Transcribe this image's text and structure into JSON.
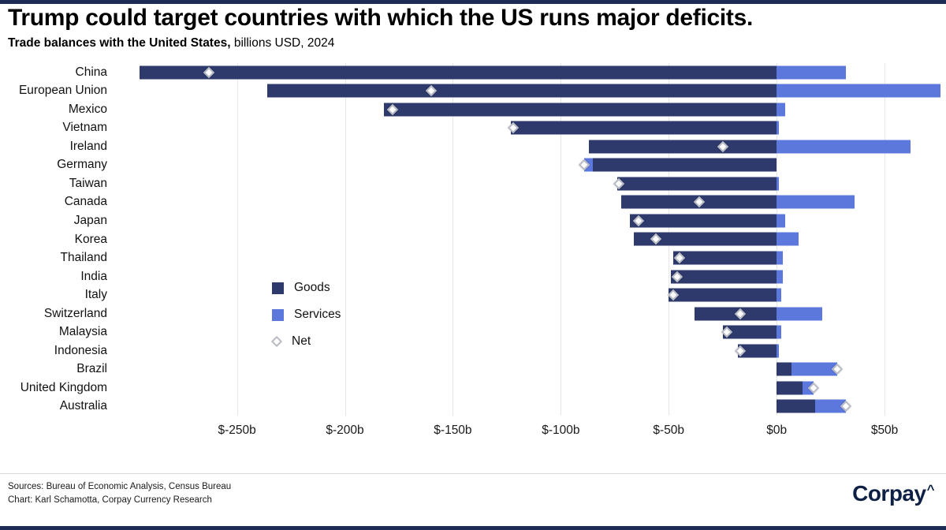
{
  "page": {
    "title": "Trump could target countries with which the US runs major deficits.",
    "subtitle_bold": "Trade balances with the United States,",
    "subtitle_rest": " billions USD, 2024"
  },
  "footer": {
    "sources": "Sources: Bureau of Economic Analysis, Census Bureau",
    "credit": "Chart: Karl Schamotta, Corpay Currency Research",
    "logo_text": "Corpay",
    "logo_mark": "^"
  },
  "colors": {
    "goods": "#2d3a6b",
    "services": "#5d78dd",
    "accent_strip": "#1e2b55",
    "gridline": "#e6e6e6"
  },
  "chart_data": {
    "type": "bar",
    "orientation": "horizontal",
    "stacked": true,
    "title": "Trump could target countries with which the US runs major deficits.",
    "subtitle": "Trade balances with the United States, billions USD, 2024",
    "xlabel": "billions USD",
    "xlim": [
      -305,
      77
    ],
    "tick_values": [
      -250,
      -200,
      -150,
      -100,
      -50,
      0,
      50
    ],
    "xlabel_ticks": [
      "$-250b",
      "$-200b",
      "$-150b",
      "$-100b",
      "$-50b",
      "$0b",
      "$50b"
    ],
    "grid": true,
    "legend_position": "inside-left",
    "categories": [
      "China",
      "European Union",
      "Mexico",
      "Vietnam",
      "Ireland",
      "Germany",
      "Taiwan",
      "Canada",
      "Japan",
      "Korea",
      "Thailand",
      "India",
      "Italy",
      "Switzerland",
      "Malaysia",
      "Indonesia",
      "Brazil",
      "United Kingdom",
      "Australia"
    ],
    "series": [
      {
        "name": "Goods",
        "color": "#2d3a6b",
        "values": [
          -295,
          -236,
          -182,
          -123,
          -87,
          -85,
          -74,
          -72,
          -68,
          -66,
          -48,
          -49,
          -50,
          -38,
          -25,
          -18,
          7,
          12,
          18
        ]
      },
      {
        "name": "Services",
        "color": "#5d78dd",
        "values": [
          32,
          76,
          4,
          1,
          62,
          -4,
          1,
          36,
          4,
          10,
          3,
          3,
          2,
          21,
          2,
          1,
          21,
          5,
          14
        ]
      }
    ],
    "net": {
      "name": "Net",
      "marker": "diamond",
      "values": [
        -263,
        -160,
        -178,
        -122,
        -25,
        -89,
        -73,
        -36,
        -64,
        -56,
        -45,
        -46,
        -48,
        -17,
        -23,
        -17,
        28,
        17,
        32
      ]
    }
  }
}
